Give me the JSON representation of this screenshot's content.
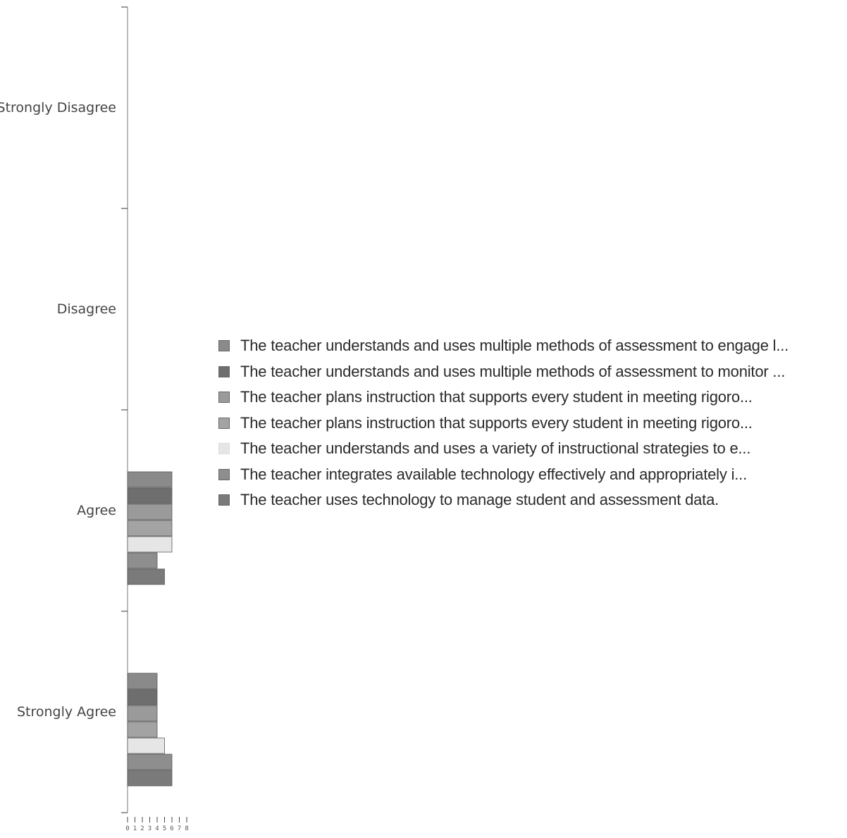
{
  "chart_data": {
    "type": "bar",
    "orientation": "horizontal",
    "categories": [
      "Strongly Disagree",
      "Disagree",
      "Agree",
      "Strongly Agree"
    ],
    "series": [
      {
        "name": "The teacher understands and uses multiple methods of assessment to engage l...",
        "color": "#8a8a8a",
        "values": [
          0,
          0,
          6,
          4
        ]
      },
      {
        "name": "The teacher understands and uses multiple methods of assessment to monitor ...",
        "color": "#6e6e6e",
        "values": [
          0,
          0,
          6,
          4
        ]
      },
      {
        "name": "The teacher plans instruction that supports every student in meeting rigoro...",
        "color": "#9a9a9a",
        "values": [
          0,
          0,
          6,
          4
        ]
      },
      {
        "name": "The teacher plans instruction that supports every student in meeting rigoro...",
        "color": "#a3a3a3",
        "values": [
          0,
          0,
          6,
          4
        ]
      },
      {
        "name": "The teacher understands and uses a variety of instructional strategies to e...",
        "color": "#e6e6e6",
        "values": [
          0,
          0,
          6,
          5
        ]
      },
      {
        "name": "The teacher integrates available technology effectively and appropriately i...",
        "color": "#8e8e8e",
        "values": [
          0,
          0,
          4,
          6
        ]
      },
      {
        "name": "The teacher uses technology to manage student and assessment data.",
        "color": "#7a7a7a",
        "values": [
          0,
          0,
          5,
          6
        ]
      }
    ],
    "xlim": [
      0,
      8
    ],
    "xticks": [
      "0",
      "1",
      "2",
      "3",
      "4",
      "5",
      "6",
      "7",
      "8"
    ],
    "legend_position": "right",
    "grid": false
  }
}
